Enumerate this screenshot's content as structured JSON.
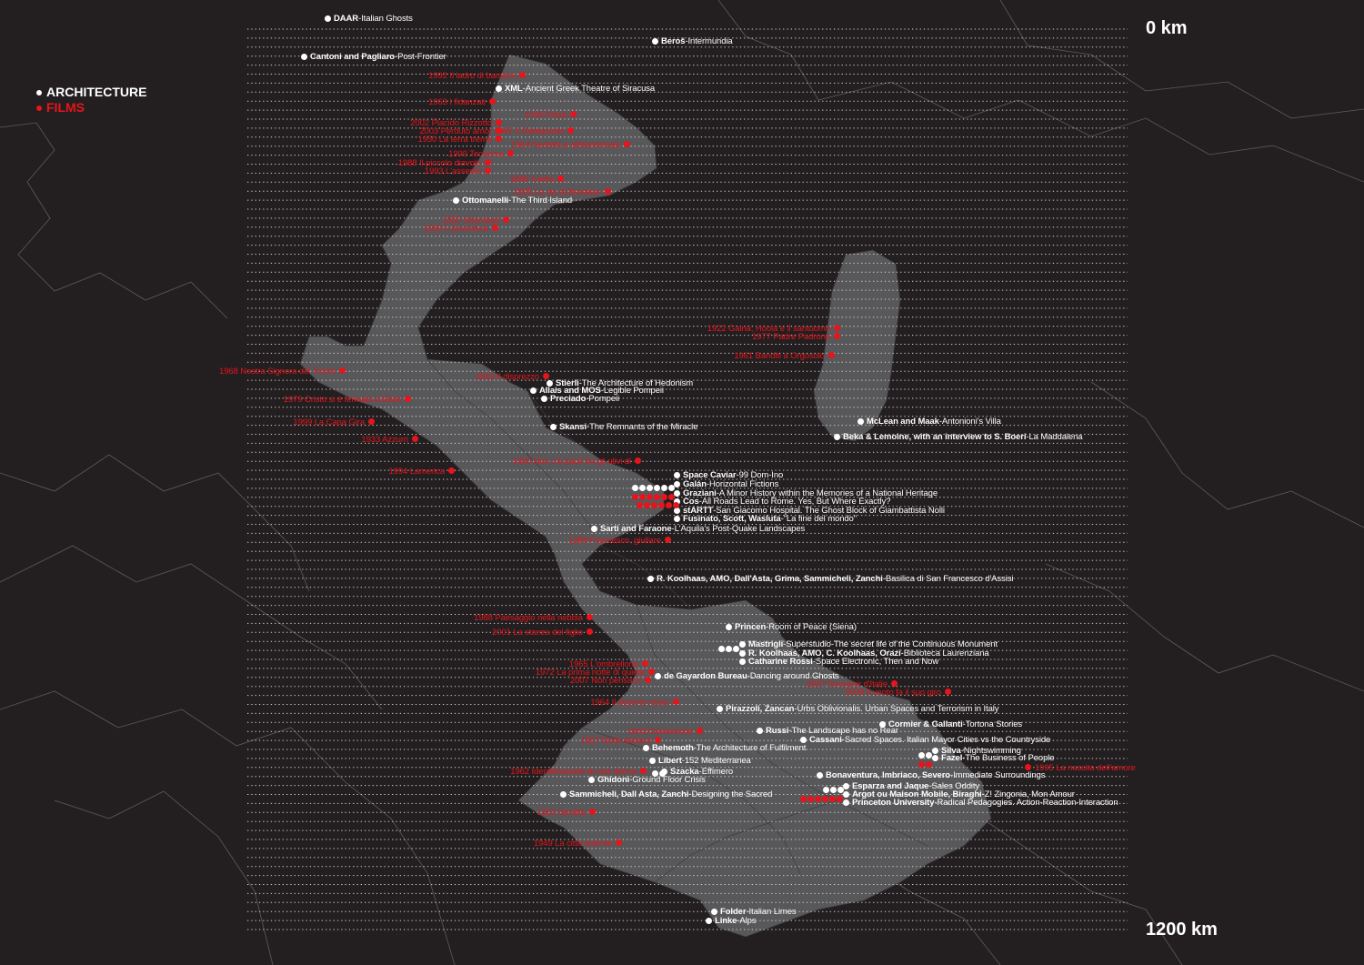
{
  "scale": {
    "top_label": "0 km",
    "bottom_label": "1200 km"
  },
  "legend": {
    "architecture": "ARCHITECTURE",
    "films": "FILMS"
  },
  "colors": {
    "architecture": "#ffffff",
    "films": "#e8141c",
    "map_fill": "#58585a",
    "background": "#231f20"
  },
  "architecture": [
    {
      "author": "DAAR",
      "title": "Italian Ghosts"
    },
    {
      "author": "Beroš",
      "title": "Intermundia"
    },
    {
      "author": "Cantoni and Pagliaro",
      "title": "Post-Frontier"
    },
    {
      "author": "XML",
      "title": "Ancient Greek Theatre of Siracusa"
    },
    {
      "author": "Ottomanelli",
      "title": "The Third Island"
    },
    {
      "author": "Stierli",
      "title": "The Architecture of Hedonism"
    },
    {
      "author": "Allais and MOS",
      "title": "Legible Pompeii"
    },
    {
      "author": "Preciado",
      "title": "Pompeii"
    },
    {
      "author": "McLean and Maak",
      "title": "Antonioni's Villa"
    },
    {
      "author": "Skansi",
      "title": "The Remnants of the Miracle"
    },
    {
      "author": "Beka & Lemoine, with an interview to S. Boeri",
      "title": "La Maddalena"
    },
    {
      "author": "Space Caviar",
      "title": "99 Dom-Ino"
    },
    {
      "author": "Galán",
      "title": "Horizontal Fictions"
    },
    {
      "author": "Graziani",
      "title": "A Minor History within the Memories of a National Heritage"
    },
    {
      "author": "Cos",
      "title": "All Roads Lead to Rome. Yes, But Where Exactly?"
    },
    {
      "author": "stARTT",
      "title": "San Giacomo Hospital. The Ghost Block of Giambattista Nolli"
    },
    {
      "author": "Fusinato, Scott, Wasluta",
      "title": "\"La fine del mondo\""
    },
    {
      "author": "Sarti and Faraone",
      "title": "L'Aquila's Post-Quake Landscapes"
    },
    {
      "author": "R. Koolhaas, AMO, Dall'Asta, Grima, Sammicheli, Zanchi",
      "title": "Basilica di San Francesco d'Assisi"
    },
    {
      "author": "Princen",
      "title": "Room of Peace (Siena)"
    },
    {
      "author": "Mastrigli",
      "title": "Superstudio-The secret life of the Continuous Monument"
    },
    {
      "author": "R. Koolhaas, AMO, C. Koolhaas, Orazi",
      "title": "Biblioteca Laurenziana"
    },
    {
      "author": "Catharine Rossi",
      "title": "Space Electronic, Then and Now"
    },
    {
      "author": "de Gayardon Bureau",
      "title": "Dancing around Ghosts"
    },
    {
      "author": "Pirazzoli, Zancan",
      "title": "Urbs Oblivionalis. Urban Spaces and Terrorism in Italy"
    },
    {
      "author": "Cormier & Gallanti",
      "title": "Tortona Stories"
    },
    {
      "author": "Russi",
      "title": "The Landscape has no Rear"
    },
    {
      "author": "Cassani",
      "title": "Sacred Spaces. Italian Mayor Cities vs the Countryside"
    },
    {
      "author": "Behemoth",
      "title": "The Architecture of Fulfilment"
    },
    {
      "author": "Silva",
      "title": "Nightswimming"
    },
    {
      "author": "Fazel",
      "title": "The Business of People"
    },
    {
      "author": "Libert",
      "title": "152 Mediterranea"
    },
    {
      "author": "Szacka",
      "title": "Effimero"
    },
    {
      "author": "Bonaventura, Imbriaco, Severo",
      "title": "Immediate Surroundings"
    },
    {
      "author": "Ghidoni",
      "title": "Ground Floor Crisis"
    },
    {
      "author": "Esparza and Jaque",
      "title": "Sales Oddity"
    },
    {
      "author": "Sammicheli, Dall Asta, Zanchi",
      "title": "Designing the Sacred"
    },
    {
      "author": "Argot ou Maison Mobile, Biraghi",
      "title": "Z! Zingonia, Mon Amour"
    },
    {
      "author": "Princeton University",
      "title": "Radical Pedagogies. Action-Reaction-Interaction"
    },
    {
      "author": "Folder",
      "title": "Italian Limes"
    },
    {
      "author": "Linke",
      "title": "Alps"
    }
  ],
  "films": [
    "1992 Il ladro di bambini",
    "1963 I fidanzati",
    "2002 Placido Rizzotto",
    "2003 Perduto amor",
    "1950 La terra trema",
    "1948 Paisà",
    "1997 Il Gattopardo",
    "1964 Sedotta e abbandonata",
    "1999 Tecnocra",
    "1988 Il piccolo diavolo",
    "1993 L'assedio",
    "1985 Il tetto",
    "1995 Lo zio di Brooklyn",
    "1950 Stromboli",
    "1960 L'avventura",
    "1922 Galnà, Hòola e il santuomo",
    "1977 Padre Padrone",
    "1961 Banditi a Orgosolo",
    "1968 Nostra Signora dei Turchi",
    "1953 Il disprezzo",
    "1979 Cristo si è fermato a Eboli",
    "1999 La Capa Gira",
    "1933 Azzurri",
    "1950 Non c'è pace tra gli ulivi di",
    "1994 Lamerica",
    "1989 Francesco, giullare",
    "1988 Paesaggio nella nebbia",
    "2001 La stanza del figlio",
    "1965 L'ombrellone",
    "1972 La prima notte di quiete",
    "2007 Non pensarci",
    "1964 Il deserto rosso",
    "1943 Ossessione",
    "1957 Notte italiana",
    "1962 Identificazione di una donna",
    "1962 Senilità",
    "1949 La città dolente",
    "1995 La nascita dell'amore",
    "2007 Souvenir d'Italie",
    "2009 Il vento fa il suo giro"
  ]
}
